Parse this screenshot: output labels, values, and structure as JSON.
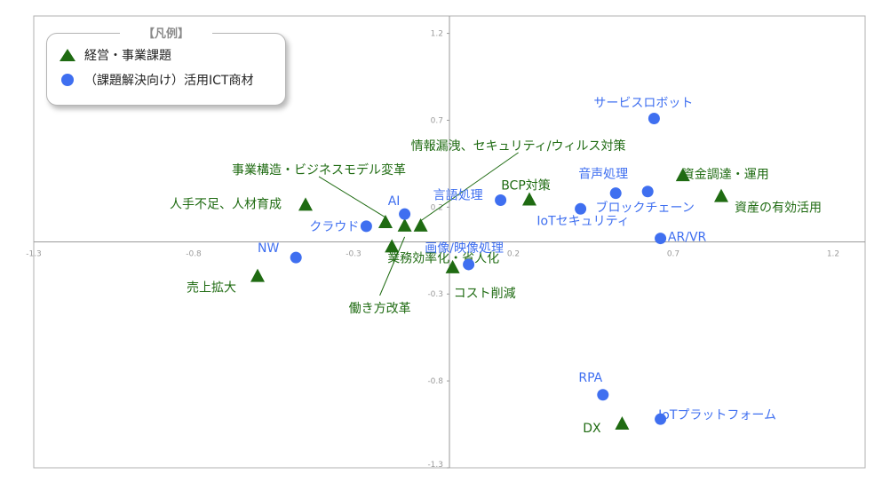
{
  "legend": {
    "title": "【凡例】",
    "items": [
      {
        "label": "経営・事業課題",
        "marker": "triangle",
        "color": "#1f6b12"
      },
      {
        "label": "（課題解決向け）活用ICT商材",
        "marker": "circle",
        "color": "#3f6ff0"
      }
    ]
  },
  "colors": {
    "issue_text": "#1f6b12",
    "ict_text": "#3f6ff0",
    "triangle": "#1f6b12",
    "circle": "#3f6ff0",
    "axis": "#9a9a9a",
    "tick": "#9a9a9a"
  },
  "chart_data": {
    "type": "scatter",
    "xlim": [
      -1.3,
      1.3
    ],
    "ylim": [
      -1.3,
      1.3
    ],
    "x_ticks": [
      "-1.3",
      "-0.8",
      "-0.3",
      "0.2",
      "0.7",
      "1.2"
    ],
    "x_tick_values": [
      -1.3,
      -0.8,
      -0.3,
      0.2,
      0.7,
      1.2
    ],
    "y_ticks": [
      "1.2",
      "0.7",
      "0.2",
      "-0.3",
      "-0.8",
      "-1.3"
    ],
    "y_tick_values": [
      1.2,
      0.7,
      0.2,
      -0.3,
      -0.8,
      -1.3
    ],
    "grid": false,
    "legend_position": "top-left",
    "series": [
      {
        "name": "経営・事業課題",
        "marker": "triangle",
        "points": [
          {
            "label": "人手不足、人材育成",
            "x": -0.45,
            "y": 0.21
          },
          {
            "label": "事業構造・ビジネスモデル変革",
            "x": -0.2,
            "y": 0.11
          },
          {
            "label": "情報漏洩、セキュリティ/ウィルス対策",
            "x": -0.09,
            "y": 0.09
          },
          {
            "label": "働き方改革",
            "x": -0.14,
            "y": 0.09
          },
          {
            "label": "業務効率化・省人化",
            "x": -0.18,
            "y": -0.03
          },
          {
            "label": "売上拡大",
            "x": -0.6,
            "y": -0.2
          },
          {
            "label": "コスト削減",
            "x": 0.01,
            "y": -0.15
          },
          {
            "label": "BCP対策",
            "x": 0.25,
            "y": 0.24
          },
          {
            "label": "資金調達・運用",
            "x": 0.73,
            "y": 0.38
          },
          {
            "label": "資産の有効活用",
            "x": 0.85,
            "y": 0.26
          },
          {
            "label": "DX",
            "x": 0.54,
            "y": -1.05
          }
        ]
      },
      {
        "name": "（課題解決向け）活用ICT商材",
        "marker": "circle",
        "points": [
          {
            "label": "サービスロボット",
            "x": 0.64,
            "y": 0.71
          },
          {
            "label": "言語処理",
            "x": 0.16,
            "y": 0.24
          },
          {
            "label": "音声処理",
            "x": 0.52,
            "y": 0.28
          },
          {
            "label": "ブロックチェーン",
            "x": 0.62,
            "y": 0.29
          },
          {
            "label": "IoTセキュリティ",
            "x": 0.41,
            "y": 0.19
          },
          {
            "label": "AR/VR",
            "x": 0.66,
            "y": 0.02
          },
          {
            "label": "AI",
            "x": -0.14,
            "y": 0.16
          },
          {
            "label": "クラウド",
            "x": -0.26,
            "y": 0.09
          },
          {
            "label": "NW",
            "x": -0.48,
            "y": -0.09
          },
          {
            "label": "画像/映像処理",
            "x": 0.06,
            "y": -0.13
          },
          {
            "label": "RPA",
            "x": 0.48,
            "y": -0.88
          },
          {
            "label": "IoTプラットフォーム",
            "x": 0.66,
            "y": -1.02
          }
        ]
      }
    ]
  }
}
